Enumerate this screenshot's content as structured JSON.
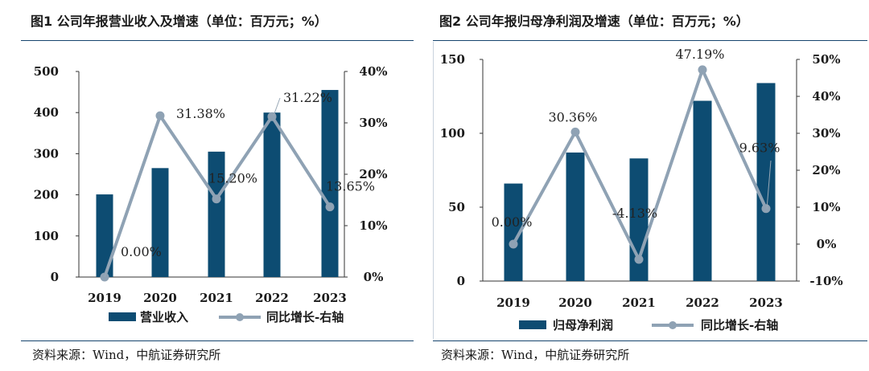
{
  "colors": {
    "bar": "#0d4c72",
    "line": "#8fa2b4",
    "axis": "#333333",
    "rule": "#16456e"
  },
  "panel1": {
    "title": "图1  公司年报营业收入及增速（单位：百万元；%）",
    "source": "资料来源：Wind，中航证券研究所"
  },
  "panel2": {
    "title": "图2  公司年报归母净利润及增速（单位：百万元；%）",
    "source": "资料来源：Wind，中航证券研究所"
  },
  "chart_data": [
    {
      "type": "bar+line",
      "title": "公司年报营业收入及增速（单位：百万元；%）",
      "categories": [
        "2019",
        "2020",
        "2021",
        "2022",
        "2023"
      ],
      "series": [
        {
          "name": "营业收入",
          "type": "bar",
          "axis": "left",
          "values": [
            201,
            265,
            305,
            400,
            455
          ]
        },
        {
          "name": "同比增长-右轴",
          "type": "line",
          "axis": "right",
          "values": [
            0.0,
            31.38,
            15.2,
            31.22,
            13.65
          ]
        }
      ],
      "data_labels": [
        "0.00%",
        "31.38%",
        "15.20%",
        "31.22%",
        "13.65%"
      ],
      "ylim_left": [
        0,
        500
      ],
      "yticks_left": [
        "0",
        "100",
        "200",
        "300",
        "400",
        "500"
      ],
      "ylim_right": [
        0,
        40
      ],
      "yticks_right": [
        "0%",
        "10%",
        "20%",
        "30%",
        "40%"
      ],
      "legend": [
        "营业收入",
        "同比增长-右轴"
      ],
      "legend_position": "bottom"
    },
    {
      "type": "bar+line",
      "title": "公司年报归母净利润及增速（单位：百万元；%）",
      "categories": [
        "2019",
        "2020",
        "2021",
        "2022",
        "2023"
      ],
      "series": [
        {
          "name": "归母净利润",
          "type": "bar",
          "axis": "left",
          "values": [
            66,
            87,
            83,
            122,
            134
          ]
        },
        {
          "name": "同比增长-右轴",
          "type": "line",
          "axis": "right",
          "values": [
            0.0,
            30.36,
            -4.13,
            47.19,
            9.63
          ]
        }
      ],
      "data_labels": [
        "0.00%",
        "30.36%",
        "-4.13%",
        "47.19%",
        "9.63%"
      ],
      "ylim_left": [
        0,
        150
      ],
      "yticks_left": [
        "0",
        "50",
        "100",
        "150"
      ],
      "ylim_right": [
        -10,
        50
      ],
      "yticks_right": [
        "-10%",
        "0%",
        "10%",
        "20%",
        "30%",
        "40%",
        "50%"
      ],
      "legend": [
        "归母净利润",
        "同比增长-右轴"
      ],
      "legend_position": "bottom"
    }
  ]
}
